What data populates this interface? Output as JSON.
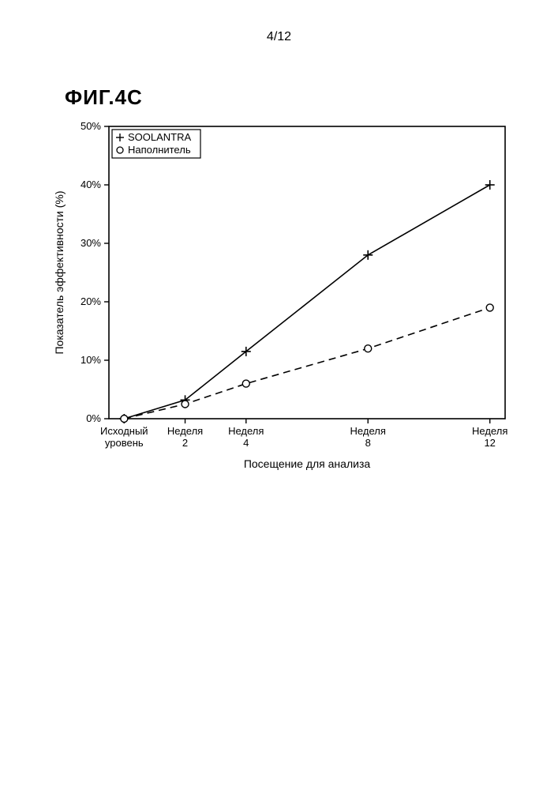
{
  "page_number": "4/12",
  "figure_title": "ФИГ.4C",
  "chart": {
    "type": "line",
    "background_color": "#ffffff",
    "axis_color": "#000000",
    "text_color": "#000000",
    "font_family": "Arial, Helvetica, sans-serif",
    "y": {
      "label": "Показатель эффективности (%)",
      "ticks": [
        0,
        10,
        20,
        30,
        40,
        50
      ],
      "tick_labels": [
        "0%",
        "10%",
        "20%",
        "30%",
        "40%",
        "50%"
      ],
      "min": 0,
      "max": 50,
      "label_fontsize": 14,
      "tick_fontsize": 13
    },
    "x": {
      "label": "Посещение для анализа",
      "categories": [
        "Исходный уровень",
        "Неделя 2",
        "Неделя 4",
        "Неделя 8",
        "Неделя 12"
      ],
      "category_lines": [
        [
          "Исходный",
          "уровень"
        ],
        [
          "Неделя",
          "2"
        ],
        [
          "Неделя",
          "4"
        ],
        [
          "Неделя",
          "8"
        ],
        [
          "Неделя",
          "12"
        ]
      ],
      "positions": [
        0,
        2,
        4,
        8,
        12
      ],
      "min": -0.5,
      "max": 12.5,
      "label_fontsize": 14,
      "tick_fontsize": 13
    },
    "legend": {
      "items": [
        {
          "label": "SOOLANTRA",
          "marker": "plus",
          "line": "solid"
        },
        {
          "label": "Наполнитель",
          "marker": "circle",
          "line": "dash"
        }
      ],
      "fontsize": 13,
      "border_color": "#000000",
      "bg": "#ffffff"
    },
    "series": [
      {
        "name": "SOOLANTRA",
        "color": "#000000",
        "line_style": "solid",
        "line_width": 1.6,
        "marker": "plus",
        "marker_size": 6,
        "x": [
          0,
          2,
          4,
          8,
          12
        ],
        "y": [
          0,
          3.2,
          11.5,
          28,
          40
        ]
      },
      {
        "name": "Наполнитель",
        "color": "#000000",
        "line_style": "dash",
        "line_width": 1.6,
        "marker": "circle",
        "marker_size": 4.5,
        "x": [
          0,
          2,
          4,
          8,
          12
        ],
        "y": [
          0,
          2.5,
          6.0,
          12,
          19
        ]
      }
    ],
    "tick_length": 6
  }
}
